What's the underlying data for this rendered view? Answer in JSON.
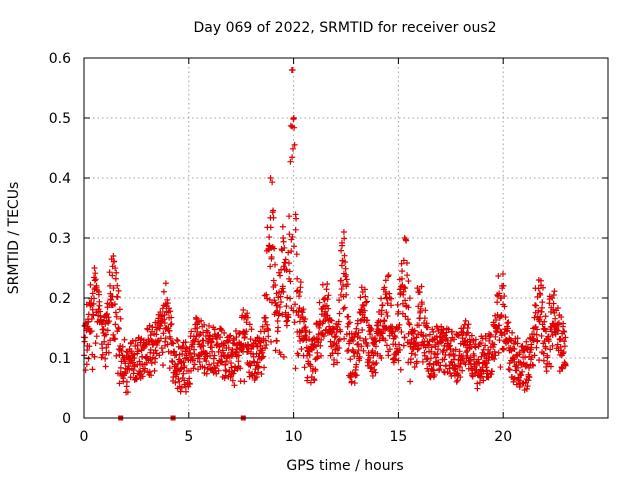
{
  "chart_data": {
    "type": "scatter",
    "title": "Day 069 of 2022, SRMTID for receiver ous2",
    "xlabel": "GPS time / hours",
    "ylabel": "SRMTID / TECUs",
    "xlim": [
      0,
      25
    ],
    "ylim": [
      0,
      0.6
    ],
    "xticks": [
      0,
      5,
      10,
      15,
      20
    ],
    "xtick_labels": [
      "0",
      "5",
      "10",
      "15",
      "20"
    ],
    "yticks": [
      0,
      0.1,
      0.2,
      0.3,
      0.4,
      0.5,
      0.6
    ],
    "ytick_labels": [
      "0",
      "0.1",
      "0.2",
      "0.3",
      "0.4",
      "0.5",
      "0.6"
    ],
    "grid": true,
    "marker": "plus",
    "color": "#e00000",
    "x_coverage": [
      0,
      23
    ],
    "baseline_band": [
      0.05,
      0.15
    ],
    "peaks": [
      {
        "x": 0.2,
        "y": 0.16
      },
      {
        "x": 0.5,
        "y": 0.25
      },
      {
        "x": 1.4,
        "y": 0.27
      },
      {
        "x": 3.9,
        "y": 0.19
      },
      {
        "x": 5.4,
        "y": 0.15
      },
      {
        "x": 7.6,
        "y": 0.18
      },
      {
        "x": 8.9,
        "y": 0.4
      },
      {
        "x": 9.5,
        "y": 0.3
      },
      {
        "x": 9.95,
        "y": 0.58
      },
      {
        "x": 10.3,
        "y": 0.21
      },
      {
        "x": 11.5,
        "y": 0.2
      },
      {
        "x": 12.4,
        "y": 0.31
      },
      {
        "x": 13.3,
        "y": 0.21
      },
      {
        "x": 14.4,
        "y": 0.21
      },
      {
        "x": 15.3,
        "y": 0.3
      },
      {
        "x": 16.0,
        "y": 0.21
      },
      {
        "x": 18.3,
        "y": 0.15
      },
      {
        "x": 19.9,
        "y": 0.2
      },
      {
        "x": 21.7,
        "y": 0.23
      },
      {
        "x": 22.4,
        "y": 0.18
      }
    ],
    "zero_markers_x": [
      1.75,
      4.25,
      7.6
    ]
  }
}
